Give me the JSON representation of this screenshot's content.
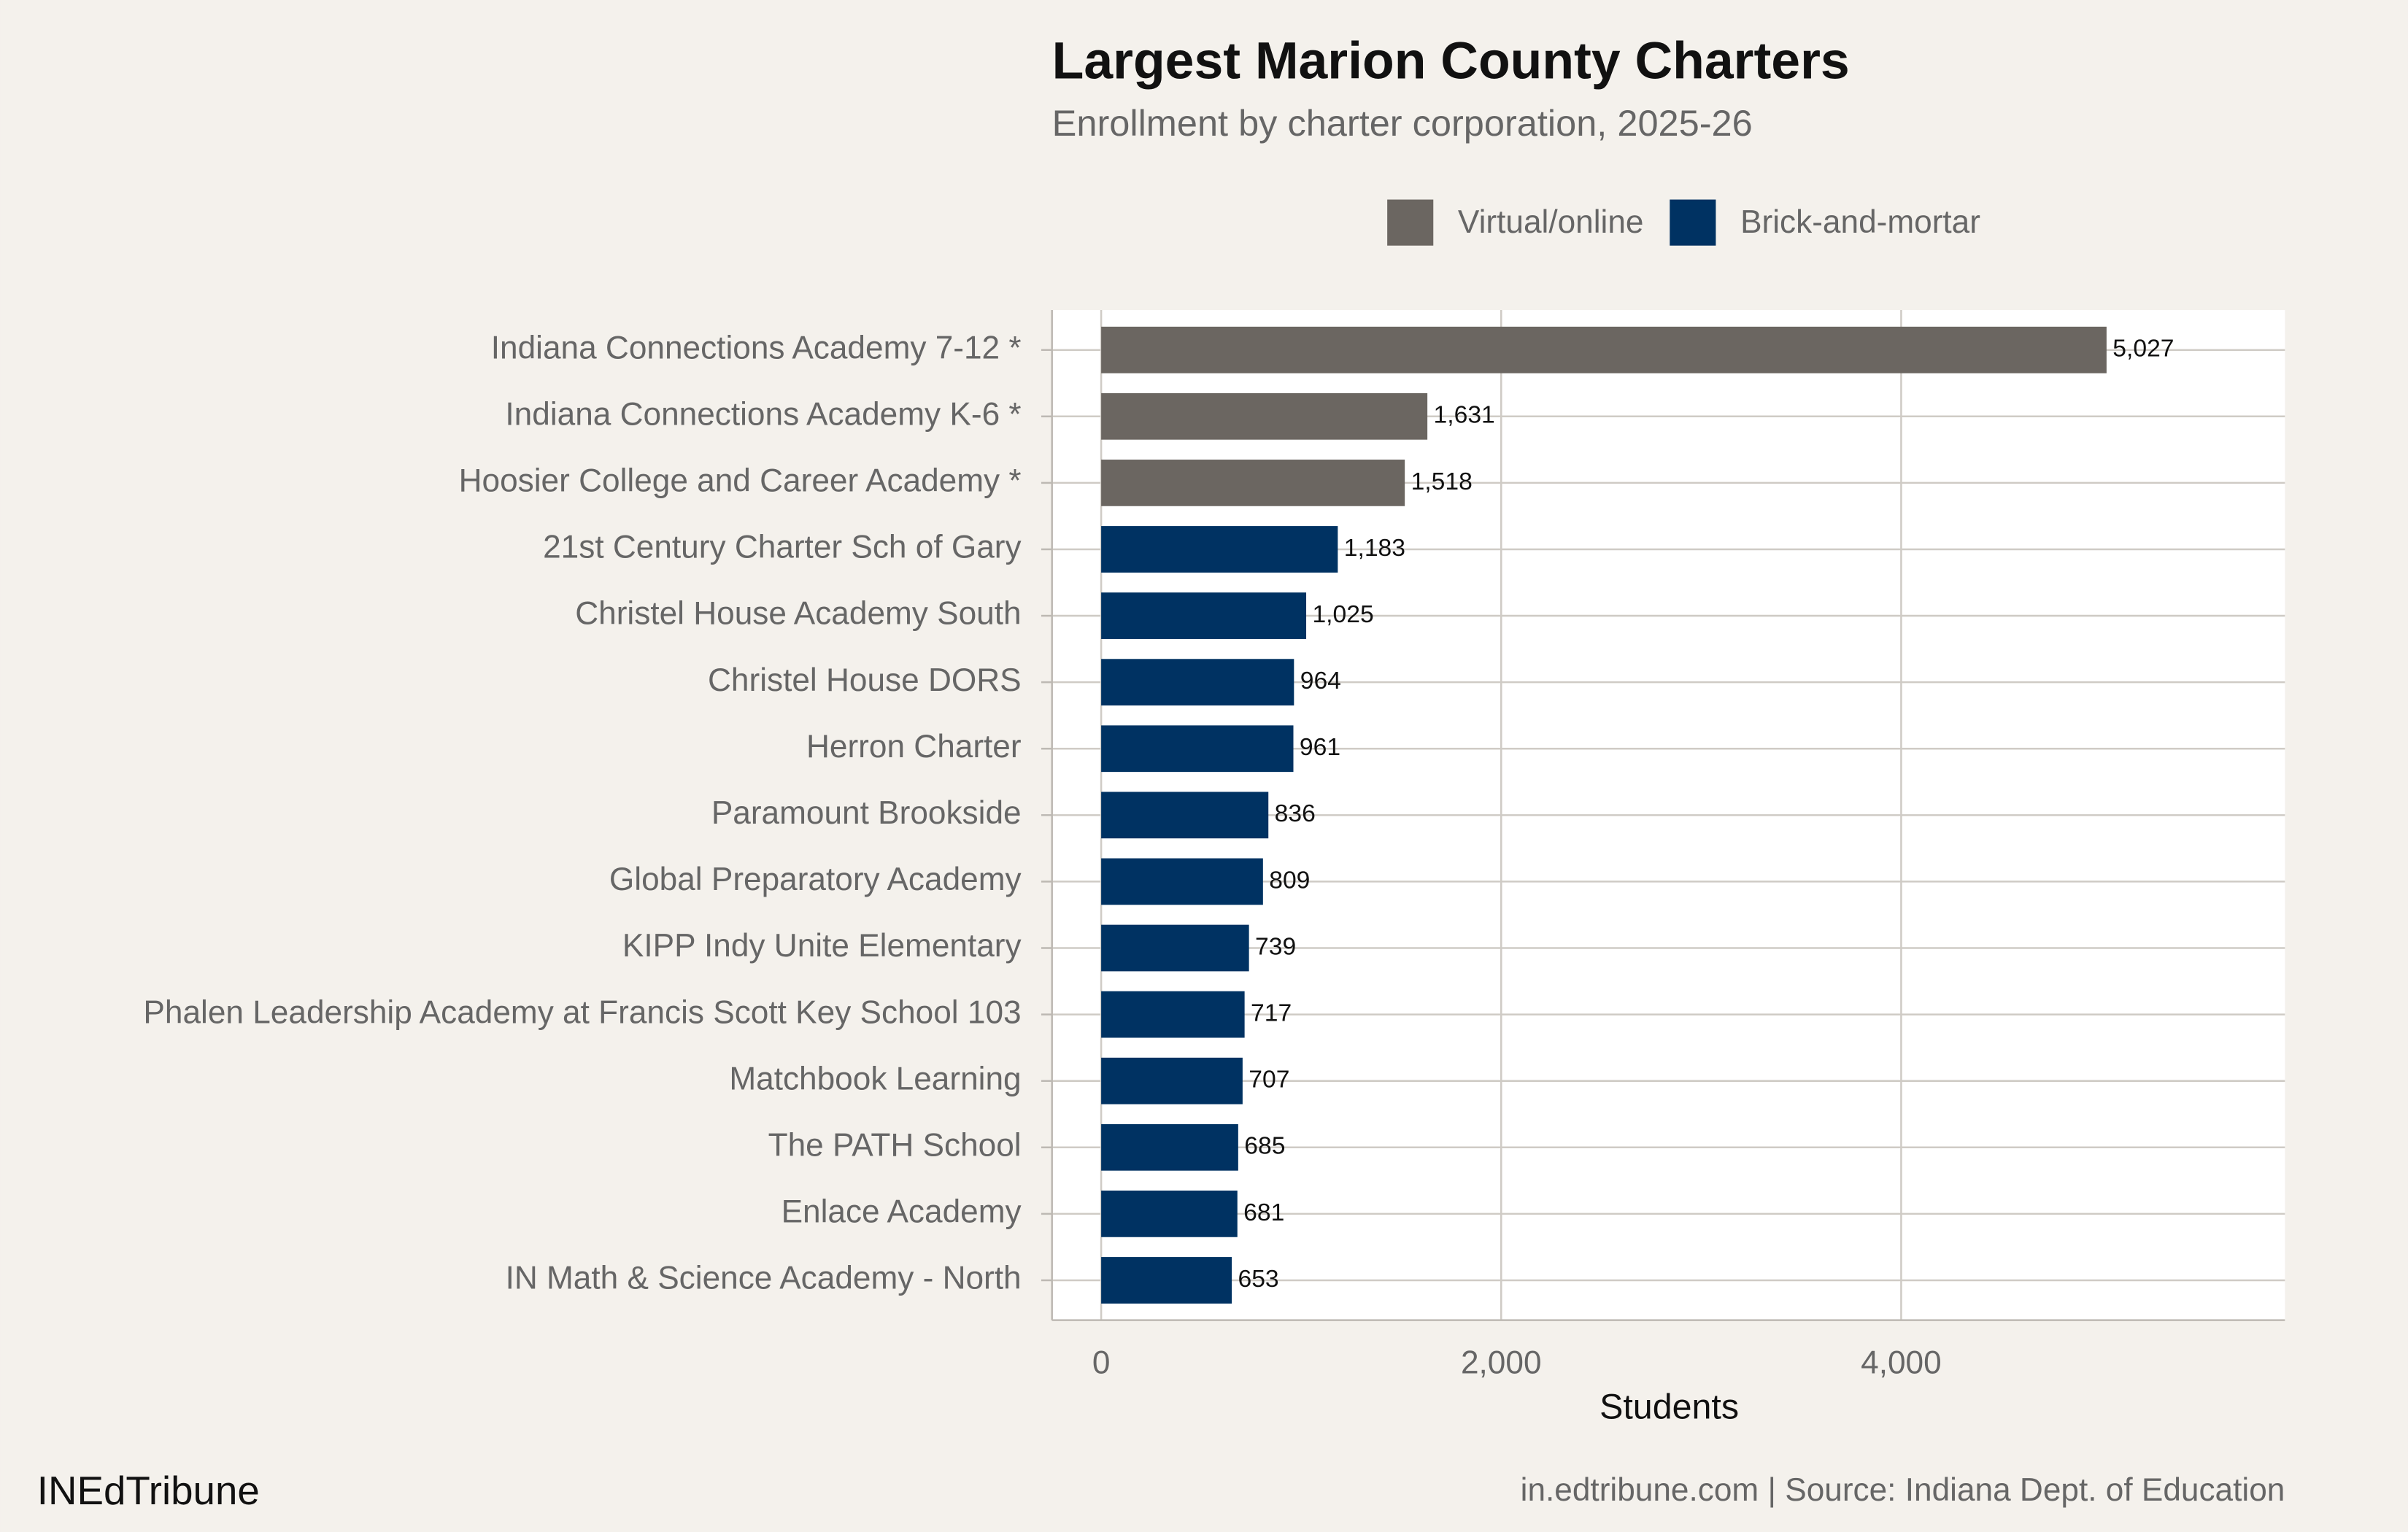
{
  "chart_data": {
    "type": "bar",
    "orientation": "horizontal",
    "title": "Largest Marion County Charters",
    "subtitle": "Enrollment by charter corporation, 2025-26",
    "x_label": "Students",
    "caption_left": "INEdTribune",
    "caption_right": "in.edtribune.com | Source: Indiana Dept. of Education",
    "categories": [
      "Indiana Connections Academy 7-12 *",
      "Indiana Connections Academy K-6 *",
      "Hoosier College and Career Academy *",
      "21st Century Charter Sch of Gary",
      "Christel House Academy South",
      "Christel House DORS",
      "Herron Charter",
      "Paramount Brookside",
      "Global Preparatory Academy",
      "KIPP Indy Unite Elementary",
      "Phalen Leadership Academy at Francis Scott Key School 103",
      "Matchbook Learning",
      "The PATH School",
      "Enlace Academy",
      "IN Math & Science Academy - North"
    ],
    "series": [
      {
        "name": "Virtual/online",
        "color": "#6b6661",
        "values": [
          5027,
          1631,
          1518,
          null,
          null,
          null,
          null,
          null,
          null,
          null,
          null,
          null,
          null,
          null,
          null
        ],
        "value_labels": [
          "5,027",
          "1,631",
          "1,518",
          null,
          null,
          null,
          null,
          null,
          null,
          null,
          null,
          null,
          null,
          null,
          null
        ]
      },
      {
        "name": "Brick-and-mortar",
        "color": "#003262",
        "values": [
          null,
          null,
          null,
          1183,
          1025,
          964,
          961,
          836,
          809,
          739,
          717,
          707,
          685,
          681,
          653
        ],
        "value_labels": [
          null,
          null,
          null,
          "1,183",
          "1,025",
          null,
          null,
          null,
          null,
          null,
          null,
          null,
          null,
          null,
          null
        ]
      }
    ],
    "xlim": [
      -246,
      5919
    ],
    "xticks": [
      0,
      {
        "value": 2000,
        "label": "2,000"
      },
      {
        "value": 4000,
        "label": "4,000"
      }
    ],
    "grid": true,
    "legend": "top"
  }
}
